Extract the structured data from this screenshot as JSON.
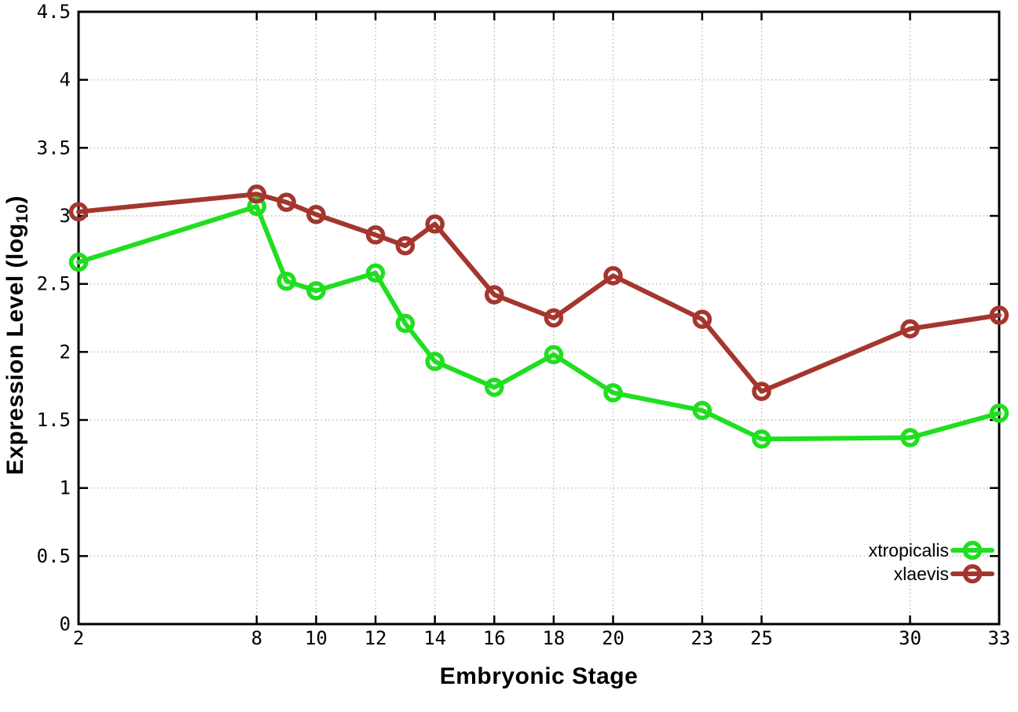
{
  "figure": {
    "background": "#ffffff",
    "border_color": "#000000",
    "grid_color": "#b8b8b8",
    "tick_label_color": "#000000"
  },
  "chart_data": {
    "type": "line",
    "title": "",
    "xlabel": "Embryonic Stage",
    "ylabel": "Expression Level (log10)",
    "ylabel_parts": {
      "base": "Expression Level (log",
      "sub": "10",
      "close": ")"
    },
    "xlim": [
      2,
      33
    ],
    "ylim": [
      0,
      4.5
    ],
    "xticks": [
      2,
      8,
      10,
      12,
      14,
      16,
      18,
      20,
      23,
      25,
      30,
      33
    ],
    "yticks": [
      0,
      0.5,
      1,
      1.5,
      2,
      2.5,
      3,
      3.5,
      4,
      4.5
    ],
    "grid": true,
    "legend_position": "inside-bottom-right",
    "x": [
      2,
      8,
      9,
      10,
      12,
      13,
      14,
      16,
      18,
      20,
      23,
      25,
      30,
      33
    ],
    "series": [
      {
        "name": "xtropicalis",
        "color": "#20DE20",
        "marker": "open-circle",
        "values": [
          2.66,
          3.07,
          2.52,
          2.45,
          2.58,
          2.21,
          1.93,
          1.74,
          1.98,
          1.7,
          1.57,
          1.36,
          1.37,
          1.55
        ]
      },
      {
        "name": "xlaevis",
        "color": "#A4362E",
        "marker": "open-circle",
        "values": [
          3.03,
          3.16,
          3.1,
          3.01,
          2.86,
          2.78,
          2.94,
          2.42,
          2.25,
          2.56,
          2.24,
          1.71,
          2.17,
          2.27
        ]
      }
    ]
  }
}
